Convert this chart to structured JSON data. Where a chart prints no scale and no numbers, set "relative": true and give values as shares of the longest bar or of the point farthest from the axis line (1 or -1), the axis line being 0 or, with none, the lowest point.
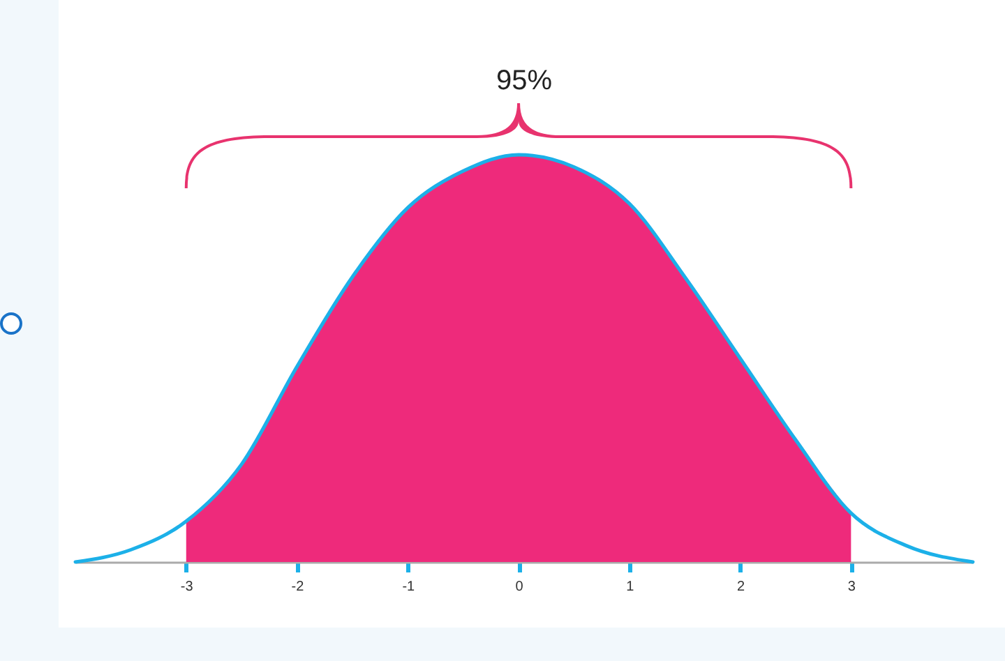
{
  "chart_data": {
    "type": "line",
    "relative": true,
    "annotations": [
      "95%"
    ],
    "xlim": [
      -4,
      4.1
    ],
    "xticks": [
      {
        "value": -3,
        "label": "-3"
      },
      {
        "value": -2,
        "label": "-2"
      },
      {
        "value": -1,
        "label": "-1"
      },
      {
        "value": 0,
        "label": "0"
      },
      {
        "value": 1,
        "label": "1"
      },
      {
        "value": 2,
        "label": "2"
      },
      {
        "value": 3,
        "label": "3"
      }
    ],
    "grid": false,
    "series": [
      {
        "type": "area",
        "color": "#ee2a7b",
        "x": [
          -3,
          -2.5,
          -2,
          -1.5,
          -1,
          -0.5,
          0,
          0.5,
          1,
          1.5,
          2,
          2.5,
          3
        ],
        "values": [
          0.1,
          0.24,
          0.48,
          0.7,
          0.87,
          0.96,
          1,
          0.97,
          0.88,
          0.7,
          0.5,
          0.3,
          0.12
        ]
      },
      {
        "type": "line",
        "color": "#1cb0e8",
        "x": [
          -4,
          -3.5,
          -3,
          -2.5,
          -2,
          -1.5,
          -1,
          -0.5,
          0,
          0.5,
          1,
          1.5,
          2,
          2.5,
          3,
          3.5,
          4.1
        ],
        "values": [
          0,
          0.03,
          0.1,
          0.24,
          0.48,
          0.7,
          0.87,
          0.96,
          1,
          0.97,
          0.88,
          0.7,
          0.5,
          0.3,
          0.12,
          0.04,
          0
        ]
      }
    ]
  }
}
